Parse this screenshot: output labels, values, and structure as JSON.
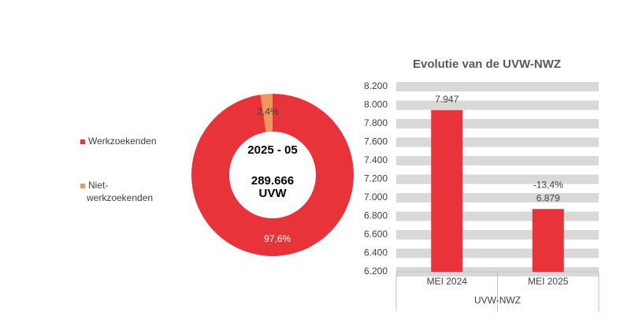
{
  "chart_data": [
    {
      "type": "donut",
      "categories": [
        "Werkzoekenden",
        "Niet-werkzoekenden"
      ],
      "values": [
        97.6,
        2.4
      ],
      "value_labels": [
        "97,6%",
        "2,4%"
      ],
      "colors": [
        "#e8333a",
        "#f0975e"
      ],
      "center_texts": [
        "2025 - 05",
        "289.666",
        "UVW"
      ],
      "legend": "left"
    },
    {
      "type": "bar",
      "title": "Evolutie van de UVW-NWZ",
      "categories": [
        "MEI 2024",
        "MEI 2025"
      ],
      "values": [
        7947,
        6879
      ],
      "value_labels": [
        "7.947",
        "6.879"
      ],
      "annotation": "-13,4%",
      "xlabel": "UVW-NWZ",
      "color": "#e8333a",
      "ylim": [
        6200,
        8200
      ],
      "yticks": [
        {
          "value": 6200,
          "label": "6.200"
        },
        {
          "value": 6400,
          "label": "6.400"
        },
        {
          "value": 6600,
          "label": "6.600"
        },
        {
          "value": 6800,
          "label": "6.800"
        },
        {
          "value": 7000,
          "label": "7.000"
        },
        {
          "value": 7200,
          "label": "7.200"
        },
        {
          "value": 7400,
          "label": "7.400"
        },
        {
          "value": 7600,
          "label": "7.600"
        },
        {
          "value": 7800,
          "label": "7.800"
        },
        {
          "value": 8000,
          "label": "8.000"
        },
        {
          "value": 8200,
          "label": "8.200"
        }
      ],
      "grid": true
    }
  ]
}
